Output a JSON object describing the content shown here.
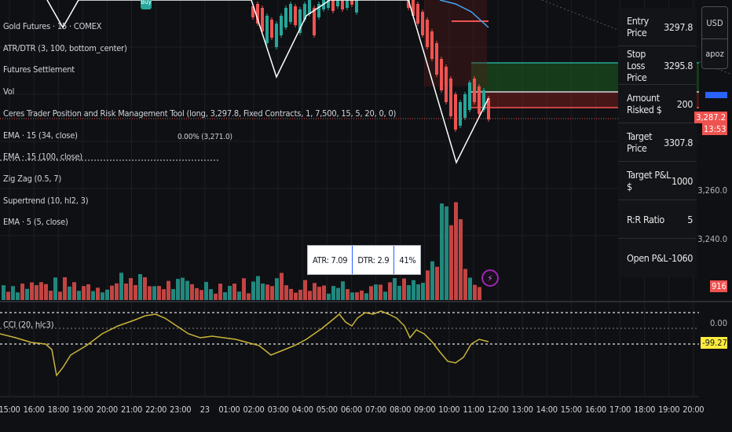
{
  "legend": {
    "symbol": "Gold Futures · 15 · COMEX",
    "atr": "ATR/DTR (3, 100, bottom_center)",
    "settlement": "Futures Settlement",
    "vol": "Vol",
    "ceres": "Ceres Trader Position and Risk Management Tool (long, 3,297.8, Fixed Contracts, 1, 7,500, 15, 5, 20, 0, 0)",
    "ema1": "EMA · 15 (34, close)",
    "ema1_value": "0.00% (3,271.0)",
    "ema2": "EMA · 15 (100, close)",
    "zigzag": "Zig Zag (0.5, 7)",
    "supertrend": "Supertrend (10, hl2, 3)",
    "ema3": "EMA · 5 (5, close)",
    "cci": "CCI (20, hlc3)"
  },
  "buy_badge": "Buy",
  "dtr": {
    "atr": "ATR: 7.09",
    "dtr": "DTR: 2.9",
    "pct": "41%"
  },
  "position_table": [
    {
      "label": "Entry Price",
      "value": "3297.8"
    },
    {
      "label": "Stop Loss Price",
      "value": "3295.8"
    },
    {
      "label": "Amount Risked $",
      "value": "200"
    },
    {
      "label": "Target Price",
      "value": "3307.8"
    },
    {
      "label": "Target P&L $",
      "value": "1000"
    },
    {
      "label": "R:R Ratio",
      "value": "5"
    },
    {
      "label": "Open P&L",
      "value": "-1060"
    }
  ],
  "currency": {
    "top": "USD",
    "bottom": "apoz"
  },
  "price_scale": {
    "current_price": "3,287.2",
    "countdown": "13:53",
    "p3260": "3,260.0",
    "p3240": "3,240.0",
    "volume_tag": "916",
    "cci_zero": "0.00",
    "cci_value": "-99.27"
  },
  "time_axis": [
    "15:00",
    "16:00",
    "18:00",
    "19:00",
    "20:00",
    "21:00",
    "22:00",
    "23:00",
    "23",
    "01:00",
    "02:00",
    "03:00",
    "04:00",
    "05:00",
    "06:00",
    "07:00",
    "08:00",
    "09:00",
    "10:00",
    "11:00",
    "12:00",
    "13:00",
    "14:00",
    "15:00",
    "16:00",
    "17:00",
    "18:00",
    "19:00",
    "20:00"
  ],
  "colors": {
    "up": "#26a69a",
    "down": "#ef5350",
    "background": "#0f1013",
    "cci": "#c9b43a",
    "target_zone": "#1b5e20",
    "stop_zone": "#7f1d1d"
  }
}
